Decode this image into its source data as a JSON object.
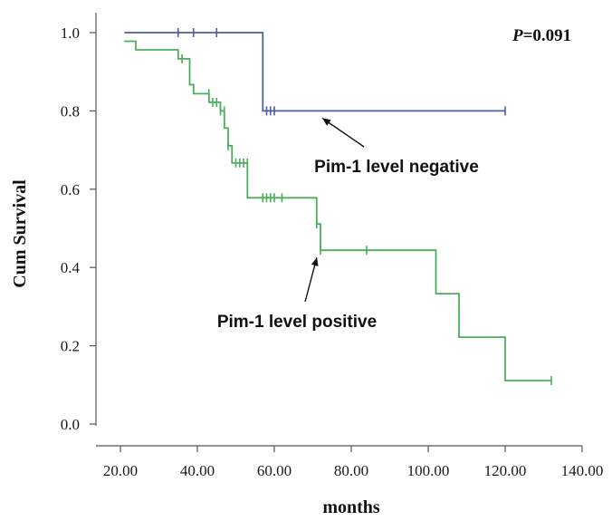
{
  "chart_data": {
    "type": "line",
    "subtype": "kaplan-meier step",
    "xlabel": "months",
    "ylabel": "Cum Survival",
    "xlim": [
      20,
      140
    ],
    "ylim": [
      0,
      1.0
    ],
    "x_ticks": [
      "20.00",
      "40.00",
      "60.00",
      "80.00",
      "100.00",
      "120.00",
      "140.00"
    ],
    "y_ticks": [
      "0.0",
      "0.2",
      "0.4",
      "0.6",
      "0.8",
      "1.0"
    ],
    "grid": false,
    "p_value": {
      "prefix": "P",
      "value": "=0.091"
    },
    "series": [
      {
        "name": "Pim-1 level negative",
        "color": "#4f5fa0",
        "steps": [
          [
            21,
            1.0
          ],
          [
            57,
            1.0
          ],
          [
            57,
            0.8
          ],
          [
            120,
            0.8
          ]
        ],
        "censored": [
          [
            35,
            1.0
          ],
          [
            39,
            1.0
          ],
          [
            45,
            1.0
          ],
          [
            58,
            0.8
          ],
          [
            59,
            0.8
          ],
          [
            60,
            0.8
          ],
          [
            120,
            0.8
          ]
        ]
      },
      {
        "name": "Pim-1 level positive",
        "color": "#4cae5c",
        "steps": [
          [
            21,
            0.978
          ],
          [
            24,
            0.978
          ],
          [
            24,
            0.956
          ],
          [
            35,
            0.956
          ],
          [
            35,
            0.933
          ],
          [
            38,
            0.933
          ],
          [
            38,
            0.867
          ],
          [
            39,
            0.867
          ],
          [
            39,
            0.844
          ],
          [
            43,
            0.844
          ],
          [
            43,
            0.822
          ],
          [
            46,
            0.822
          ],
          [
            46,
            0.8
          ],
          [
            47,
            0.8
          ],
          [
            47,
            0.756
          ],
          [
            48,
            0.756
          ],
          [
            48,
            0.711
          ],
          [
            49,
            0.711
          ],
          [
            49,
            0.667
          ],
          [
            53,
            0.667
          ],
          [
            53,
            0.578
          ],
          [
            71,
            0.578
          ],
          [
            71,
            0.511
          ],
          [
            72,
            0.511
          ],
          [
            72,
            0.444
          ],
          [
            102,
            0.444
          ],
          [
            102,
            0.333
          ],
          [
            108,
            0.333
          ],
          [
            108,
            0.222
          ],
          [
            120,
            0.222
          ],
          [
            120,
            0.111
          ],
          [
            132,
            0.111
          ]
        ],
        "censored": [
          [
            36,
            0.933
          ],
          [
            43,
            0.844
          ],
          [
            44,
            0.822
          ],
          [
            45,
            0.822
          ],
          [
            46,
            0.8
          ],
          [
            47,
            0.8
          ],
          [
            48,
            0.711
          ],
          [
            50,
            0.667
          ],
          [
            51,
            0.667
          ],
          [
            52,
            0.667
          ],
          [
            53,
            0.667
          ],
          [
            57,
            0.578
          ],
          [
            58,
            0.578
          ],
          [
            59,
            0.578
          ],
          [
            60,
            0.578
          ],
          [
            62,
            0.578
          ],
          [
            71,
            0.511
          ],
          [
            72,
            0.444
          ],
          [
            84,
            0.444
          ],
          [
            132,
            0.111
          ]
        ]
      }
    ],
    "annotations": [
      {
        "text": "Pim-1 level negative",
        "arrow_to": [
          72,
          0.8
        ]
      },
      {
        "text": "Pim-1 level positive",
        "arrow_to": [
          72,
          0.444
        ]
      }
    ]
  }
}
